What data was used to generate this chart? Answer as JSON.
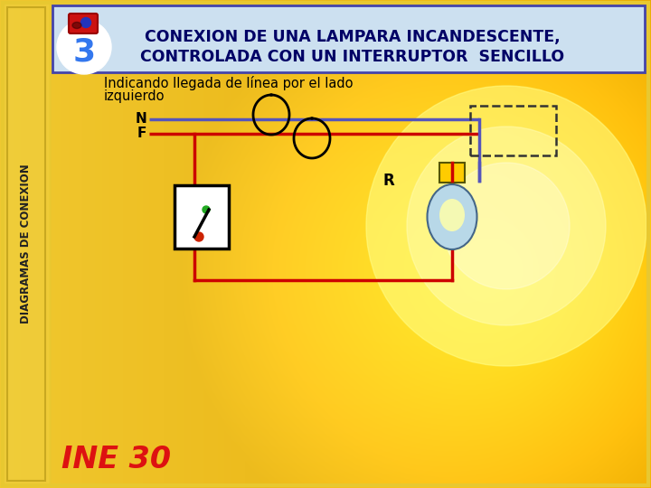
{
  "title_line1": "CONEXION DE UNA LAMPARA INCANDESCENTE,",
  "title_line2": "CONTROLADA CON UN INTERRUPTOR  SENCILLO",
  "side_text": "DIAGRAMAS DE CONEXION",
  "bottom_text": "INE 30",
  "label_N": "N",
  "label_F": "F",
  "label_R": "R",
  "wire_neutral_color": "#5555bb",
  "wire_phase_color": "#cc0000",
  "title_bg": "#cce0f0",
  "title_border": "#4444aa",
  "title_color": "#000066",
  "frame_yellow": "#e8c830",
  "left_bar_color": "#f0d040",
  "switch_box_color": "#ffffff",
  "bulb_base_color": "#ffcc00",
  "bulb_glass_color": "#b8d8e8",
  "bg_left": "#f0c830",
  "bg_right": "#e8a800"
}
